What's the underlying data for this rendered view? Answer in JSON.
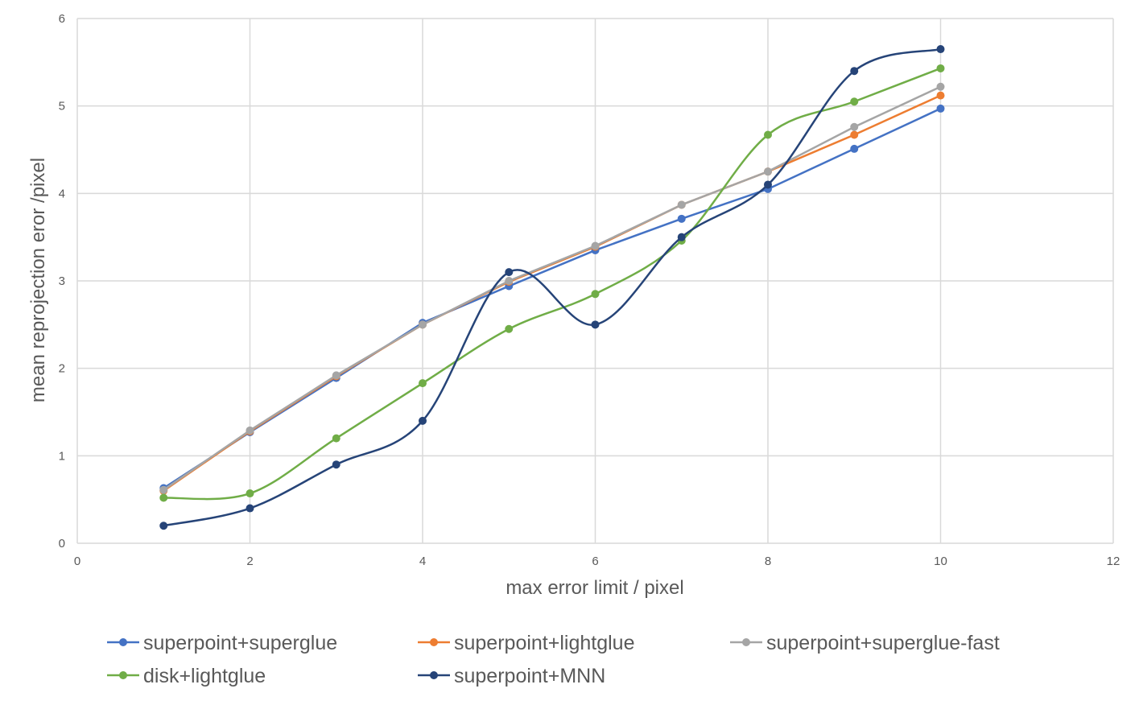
{
  "chart_data": {
    "type": "scatter",
    "title": "",
    "xlabel": "max error limit / pixel",
    "ylabel": "mean reprojection eror /pixel",
    "xlim": [
      0,
      12
    ],
    "ylim": [
      0,
      6
    ],
    "x_ticks": [
      "0",
      "2",
      "4",
      "6",
      "8",
      "10",
      "12"
    ],
    "y_ticks": [
      "0",
      "1",
      "2",
      "3",
      "4",
      "5",
      "6"
    ],
    "grid": true,
    "legend_position": "bottom",
    "series": [
      {
        "name": "superpoint+superglue",
        "color": "#4472C4",
        "smooth": false,
        "x": [
          1,
          2,
          3,
          4,
          5,
          6,
          7,
          8,
          9,
          10
        ],
        "y": [
          0.63,
          1.27,
          1.89,
          2.52,
          2.94,
          3.35,
          3.71,
          4.05,
          4.51,
          4.97
        ]
      },
      {
        "name": "superpoint+lightglue",
        "color": "#ED7D31",
        "smooth": false,
        "x": [
          1,
          2,
          3,
          4,
          5,
          6,
          7,
          8,
          9,
          10
        ],
        "y": [
          0.6,
          1.28,
          1.91,
          2.5,
          2.99,
          3.39,
          3.87,
          4.25,
          4.67,
          5.12
        ]
      },
      {
        "name": "superpoint+superglue-fast",
        "color": "#A5A5A5",
        "smooth": false,
        "x": [
          1,
          2,
          3,
          4,
          5,
          6,
          7,
          8,
          9,
          10
        ],
        "y": [
          0.61,
          1.29,
          1.92,
          2.5,
          3.0,
          3.4,
          3.87,
          4.25,
          4.76,
          5.22
        ]
      },
      {
        "name": "disk+lightglue",
        "color": "#70AD47",
        "smooth": true,
        "x": [
          1,
          2,
          3,
          4,
          5,
          6,
          7,
          8,
          9,
          10
        ],
        "y": [
          0.52,
          0.57,
          1.2,
          1.83,
          2.45,
          2.85,
          3.46,
          4.67,
          5.05,
          5.43
        ]
      },
      {
        "name": "superpoint+MNN",
        "color": "#264478",
        "smooth": true,
        "x": [
          1,
          2,
          3,
          4,
          5,
          6,
          7,
          8,
          9,
          10
        ],
        "y": [
          0.2,
          0.4,
          0.9,
          1.4,
          3.1,
          2.5,
          3.5,
          4.1,
          5.4,
          5.65
        ]
      }
    ]
  }
}
